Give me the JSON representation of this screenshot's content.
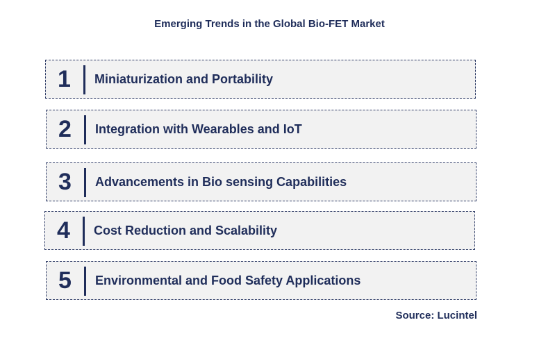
{
  "title": "Emerging Trends in the Global Bio-FET Market",
  "items": [
    {
      "number": "1",
      "label": "Miniaturization and Portability"
    },
    {
      "number": "2",
      "label": "Integration with Wearables and IoT"
    },
    {
      "number": "3",
      "label": "Advancements in Bio sensing Capabilities"
    },
    {
      "number": "4",
      "label": "Cost Reduction and Scalability"
    },
    {
      "number": "5",
      "label": "Environmental and Food Safety Applications"
    }
  ],
  "source": "Source: Lucintel",
  "colors": {
    "text": "#1f2d5a",
    "box_fill": "#f2f2f2",
    "border": "#2e3b66"
  }
}
